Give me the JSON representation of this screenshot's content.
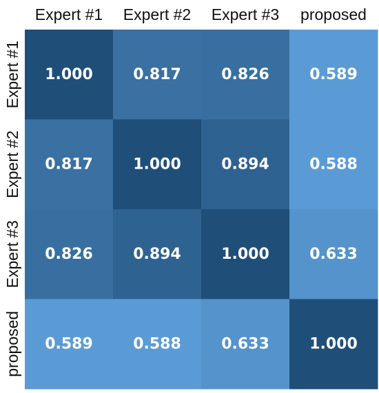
{
  "chart_data": {
    "type": "heatmap",
    "rows": [
      "Expert #1",
      "Expert #2",
      "Expert #3",
      "proposed"
    ],
    "columns": [
      "Expert #1",
      "Expert #2",
      "Expert #3",
      "proposed"
    ],
    "values": [
      [
        1.0,
        0.817,
        0.826,
        0.589
      ],
      [
        0.817,
        1.0,
        0.894,
        0.588
      ],
      [
        0.826,
        0.894,
        1.0,
        0.633
      ],
      [
        0.589,
        0.588,
        0.633,
        1.0
      ]
    ],
    "labels": [
      [
        "1.000",
        "0.817",
        "0.826",
        "0.589"
      ],
      [
        "0.817",
        "1.000",
        "0.894",
        "0.588"
      ],
      [
        "0.826",
        "0.894",
        "1.000",
        "0.633"
      ],
      [
        "0.589",
        "0.588",
        "0.633",
        "1.000"
      ]
    ],
    "color_scale": {
      "low": "#5b9bd5",
      "high": "#1f4e79"
    },
    "legend": "none",
    "grid": false
  }
}
